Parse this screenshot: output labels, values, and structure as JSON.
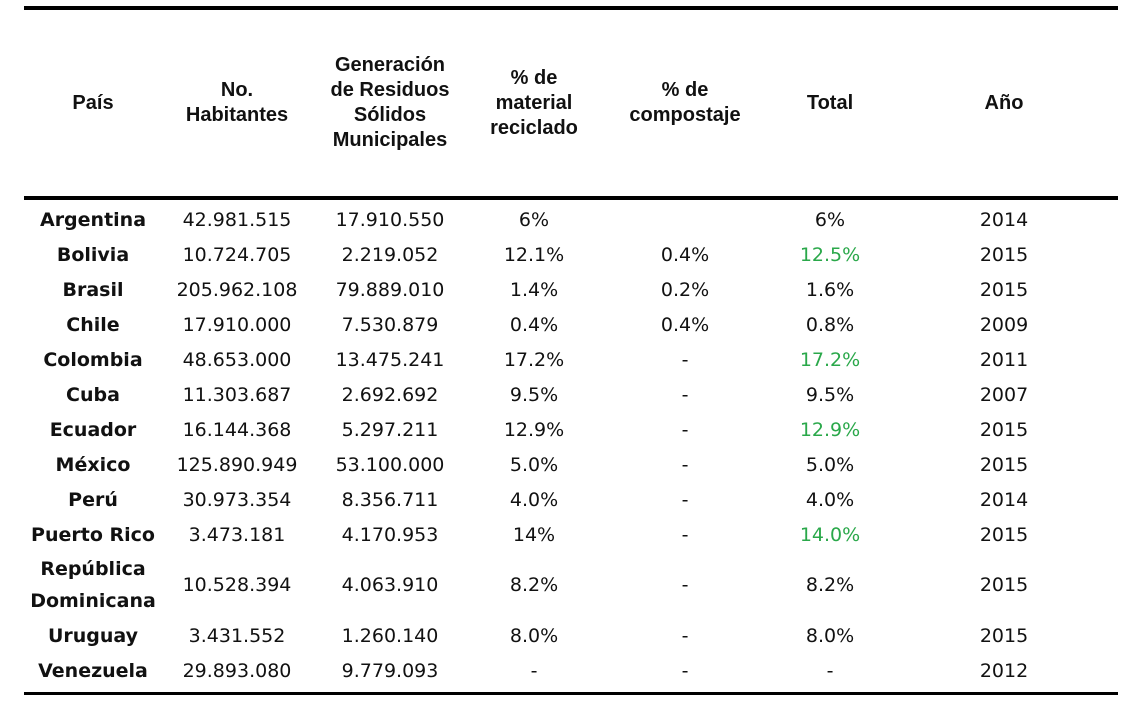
{
  "table": {
    "headers": [
      "País",
      "No.\nHabitantes",
      "Generación\nde Residuos\nSólidos\nMunicipales",
      "% de\nmaterial\nreciclado",
      "% de\ncompostaje",
      "Total",
      "Año"
    ],
    "rows": [
      {
        "pais": "Argentina",
        "habitantes": "42.981.515",
        "residuos": "17.910.550",
        "reciclado": "6%",
        "compostaje": "",
        "total": "6%",
        "anio": "2014"
      },
      {
        "pais": "Bolivia",
        "habitantes": "10.724.705",
        "residuos": "2.219.052",
        "reciclado": "12.1%",
        "compostaje": "0.4%",
        "total": "12.5%",
        "anio": "2015"
      },
      {
        "pais": "Brasil",
        "habitantes": "205.962.108",
        "residuos": "79.889.010",
        "reciclado": "1.4%",
        "compostaje": "0.2%",
        "total": "1.6%",
        "anio": "2015"
      },
      {
        "pais": "Chile",
        "habitantes": "17.910.000",
        "residuos": "7.530.879",
        "reciclado": "0.4%",
        "compostaje": "0.4%",
        "total": "0.8%",
        "anio": "2009"
      },
      {
        "pais": "Colombia",
        "habitantes": "48.653.000",
        "residuos": "13.475.241",
        "reciclado": "17.2%",
        "compostaje": "-",
        "total": "17.2%",
        "anio": "2011"
      },
      {
        "pais": "Cuba",
        "habitantes": "11.303.687",
        "residuos": "2.692.692",
        "reciclado": "9.5%",
        "compostaje": "-",
        "total": "9.5%",
        "anio": "2007"
      },
      {
        "pais": "Ecuador",
        "habitantes": "16.144.368",
        "residuos": "5.297.211",
        "reciclado": "12.9%",
        "compostaje": "-",
        "total": "12.9%",
        "anio": "2015"
      },
      {
        "pais": "México",
        "habitantes": "125.890.949",
        "residuos": "53.100.000",
        "reciclado": "5.0%",
        "compostaje": "-",
        "total": "5.0%",
        "anio": "2015"
      },
      {
        "pais": "Perú",
        "habitantes": "30.973.354",
        "residuos": "8.356.711",
        "reciclado": "4.0%",
        "compostaje": "-",
        "total": "4.0%",
        "anio": "2014"
      },
      {
        "pais": "Puerto Rico",
        "habitantes": "3.473.181",
        "residuos": "4.170.953",
        "reciclado": "14%",
        "compostaje": "-",
        "total": "14.0%",
        "anio": "2015"
      },
      {
        "pais": "República\nDominicana",
        "habitantes": "10.528.394",
        "residuos": "4.063.910",
        "reciclado": "8.2%",
        "compostaje": "-",
        "total": "8.2%",
        "anio": "2015"
      },
      {
        "pais": "Uruguay",
        "habitantes": "3.431.552",
        "residuos": "1.260.140",
        "reciclado": "8.0%",
        "compostaje": "-",
        "total": "8.0%",
        "anio": "2015"
      },
      {
        "pais": "Venezuela",
        "habitantes": "29.893.080",
        "residuos": "9.779.093",
        "reciclado": "-",
        "compostaje": "-",
        "total": "-",
        "anio": "2012"
      }
    ],
    "highlight_color": "#2aa84a",
    "highlighted_totals": [
      "Bolivia",
      "Colombia",
      "Ecuador",
      "Puerto Rico"
    ]
  }
}
